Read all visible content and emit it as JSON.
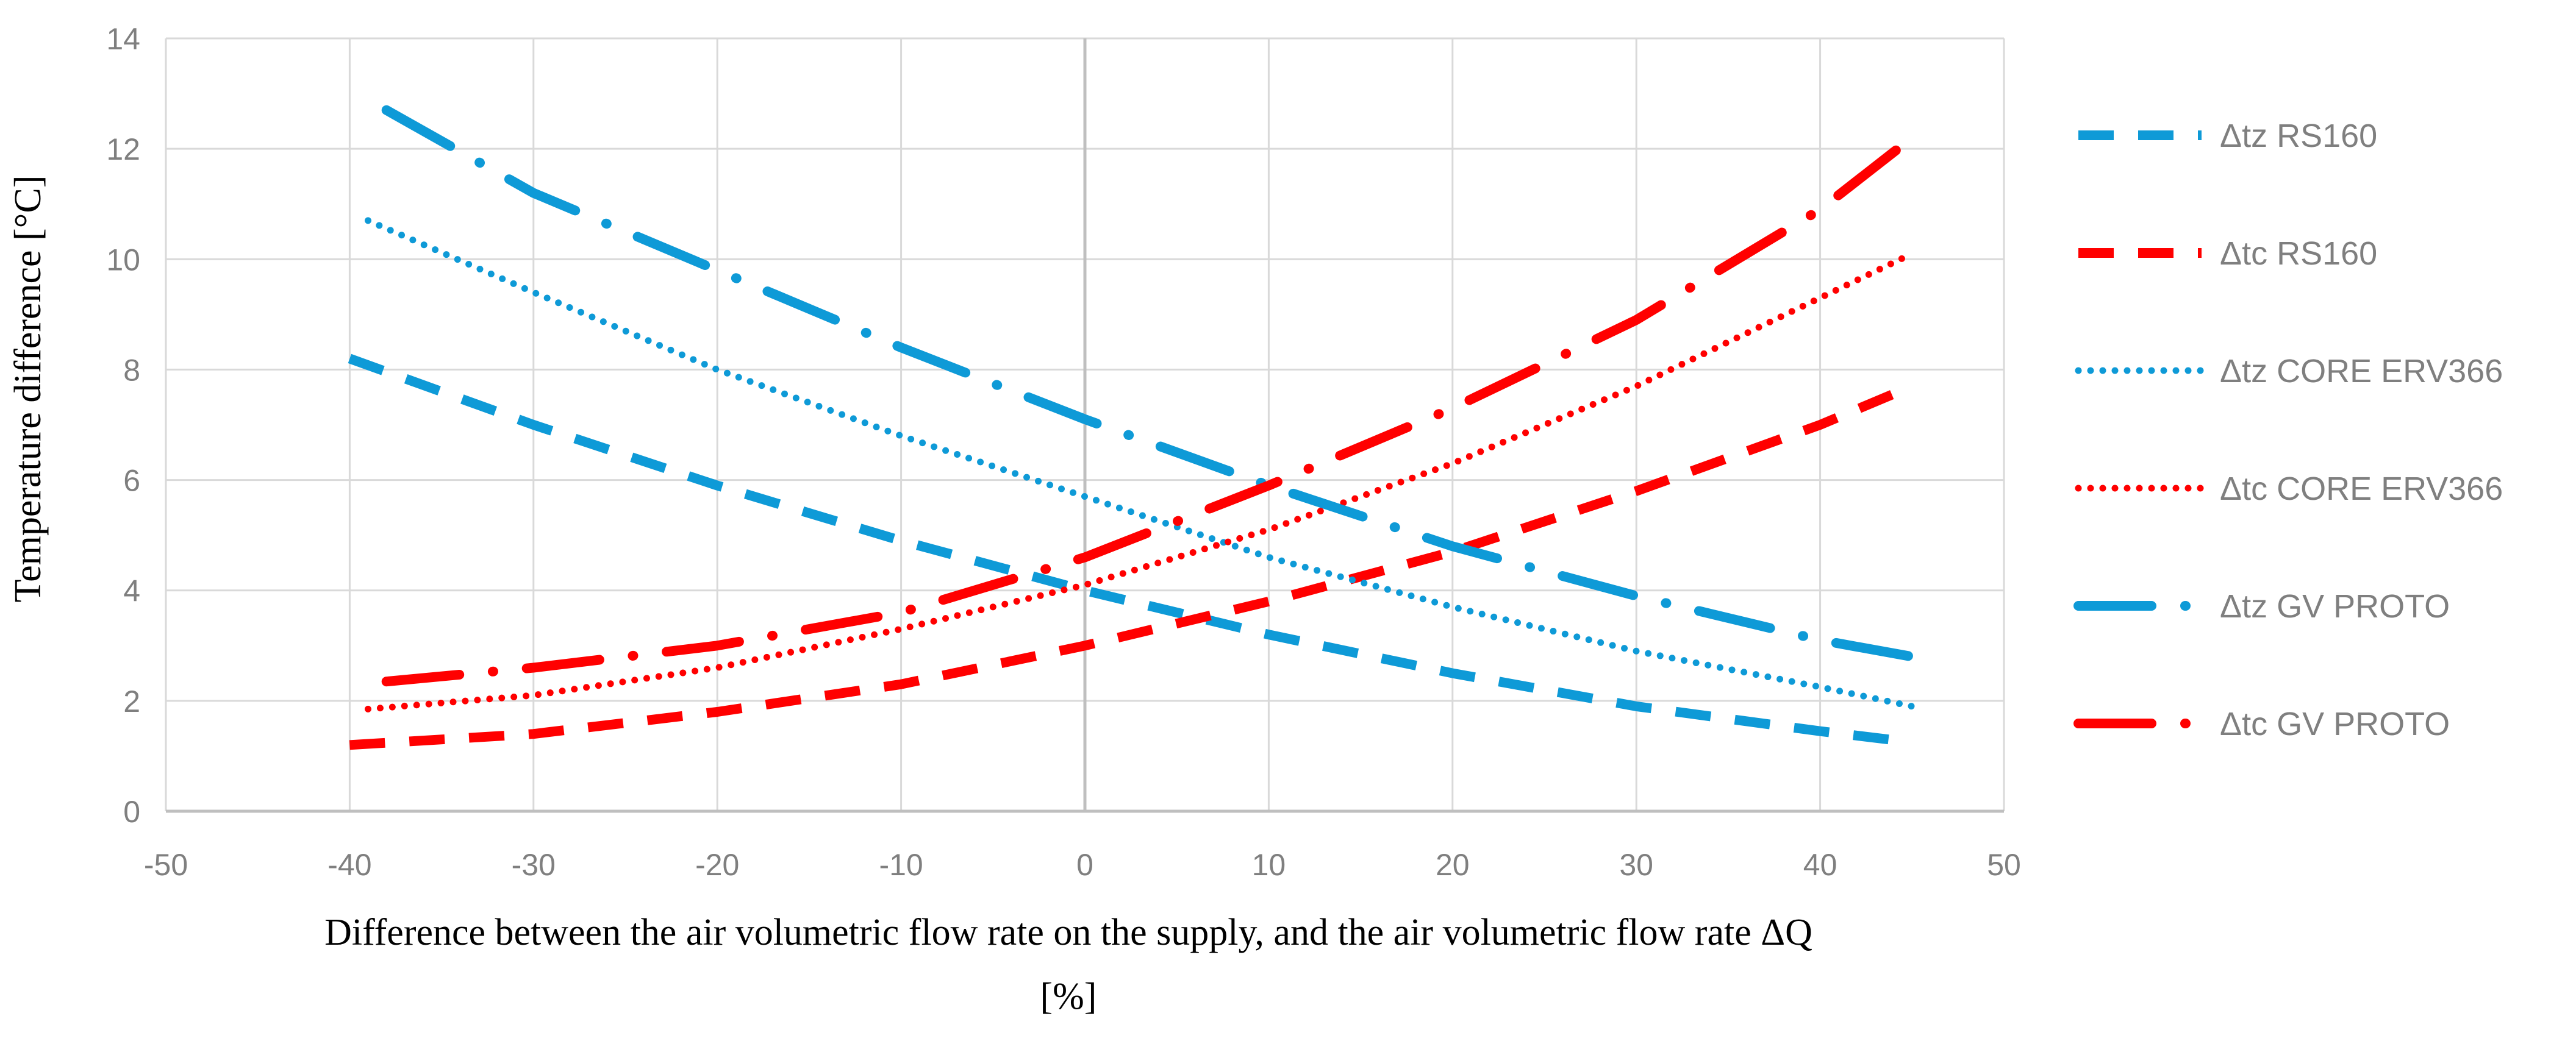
{
  "chart_data": {
    "type": "line",
    "title": "",
    "xlabel_line1": "Difference between the air volumetric flow rate on the supply, and the air volumetric flow rate ΔQ",
    "xlabel_line2": "[%]",
    "ylabel": "Temperature difference [°C]",
    "xlim": [
      -50,
      50
    ],
    "ylim": [
      0,
      14
    ],
    "xticks": [
      -50,
      -40,
      -30,
      -20,
      -10,
      0,
      10,
      20,
      30,
      40,
      50
    ],
    "yticks": [
      0,
      2,
      4,
      6,
      8,
      10,
      12,
      14
    ],
    "grid": true,
    "legend_position": "right",
    "colors": {
      "blue": "#0e9ad7",
      "red": "#ff0000",
      "grid": "#d9d9d9",
      "zero_line": "#bfbfbf"
    },
    "series": [
      {
        "name": "Δtz RS160",
        "color": "#0e9ad7",
        "dash": "long-dash",
        "x": [
          -40,
          -30,
          -20,
          -10,
          0,
          10,
          20,
          30,
          40,
          45
        ],
        "y": [
          8.2,
          7.0,
          5.9,
          4.9,
          4.0,
          3.2,
          2.5,
          1.9,
          1.45,
          1.25
        ]
      },
      {
        "name": "Δtc RS160",
        "color": "#ff0000",
        "dash": "long-dash",
        "x": [
          -40,
          -30,
          -20,
          -10,
          0,
          10,
          20,
          30,
          40,
          45
        ],
        "y": [
          1.2,
          1.4,
          1.8,
          2.3,
          3.0,
          3.8,
          4.7,
          5.8,
          7.0,
          7.7
        ]
      },
      {
        "name": "Δtz CORE ERV366",
        "color": "#0e9ad7",
        "dash": "dot",
        "x": [
          -39,
          -30,
          -20,
          -10,
          0,
          10,
          20,
          30,
          40,
          45
        ],
        "y": [
          10.7,
          9.4,
          8.0,
          6.8,
          5.7,
          4.6,
          3.7,
          2.9,
          2.25,
          1.9
        ]
      },
      {
        "name": "Δtc  CORE ERV366",
        "color": "#ff0000",
        "dash": "dot",
        "x": [
          -39,
          -30,
          -20,
          -10,
          0,
          10,
          20,
          30,
          40,
          45
        ],
        "y": [
          1.85,
          2.1,
          2.6,
          3.3,
          4.1,
          5.1,
          6.3,
          7.7,
          9.3,
          10.1
        ]
      },
      {
        "name": "Δtz GV PROTO",
        "color": "#0e9ad7",
        "dash": "dash-dot",
        "x": [
          -38,
          -30,
          -20,
          -10,
          0,
          10,
          20,
          30,
          40,
          45
        ],
        "y": [
          12.7,
          11.2,
          9.8,
          8.4,
          7.1,
          5.9,
          4.8,
          3.9,
          3.1,
          2.8
        ]
      },
      {
        "name": "Δtc GV PROTO",
        "color": "#ff0000",
        "dash": "dash-dot",
        "x": [
          -38,
          -30,
          -20,
          -10,
          0,
          10,
          20,
          30,
          40,
          45
        ],
        "y": [
          2.35,
          2.6,
          3.0,
          3.6,
          4.6,
          5.9,
          7.3,
          8.9,
          10.9,
          12.2
        ]
      }
    ]
  }
}
